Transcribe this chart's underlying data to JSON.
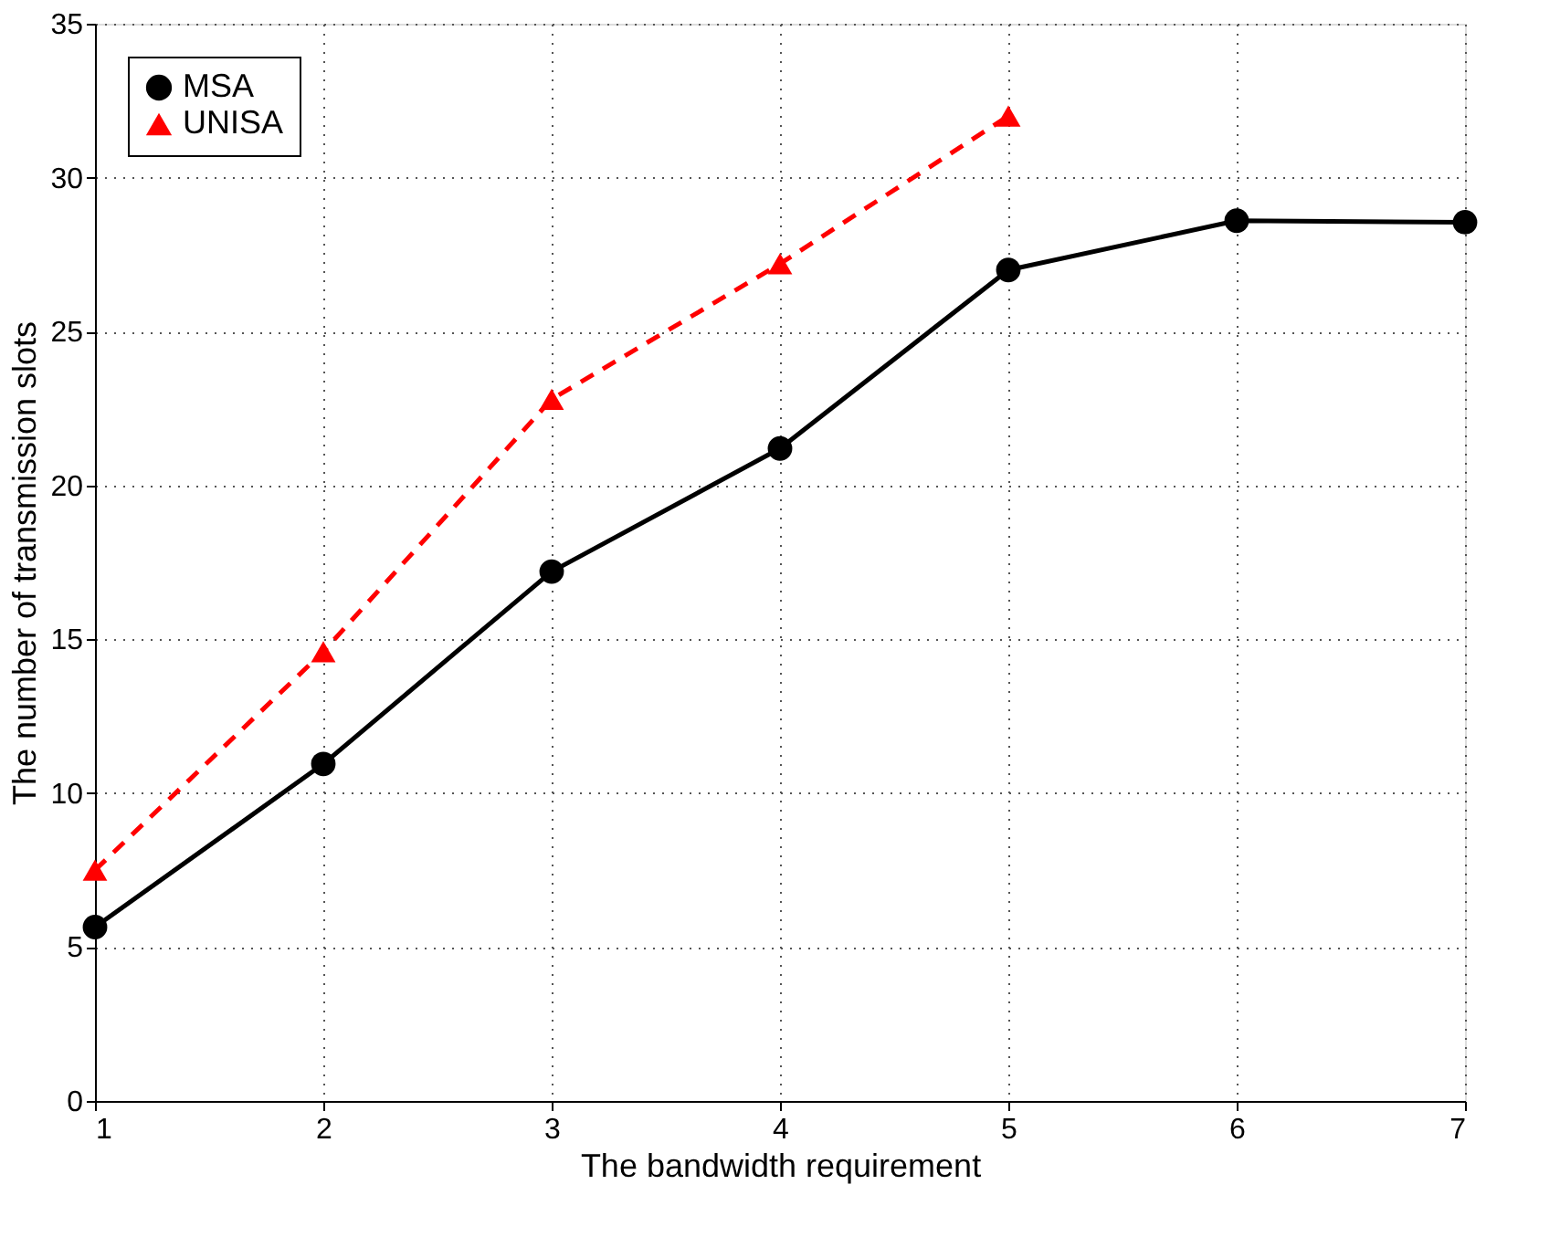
{
  "chart_data": {
    "type": "line",
    "xlabel": "The bandwidth requirement",
    "ylabel": "The number of transmission slots",
    "x": [
      1,
      2,
      3,
      4,
      5,
      6,
      7
    ],
    "series": [
      {
        "name": "MSA",
        "color": "#000000",
        "values": [
          5.65,
          10.95,
          17.2,
          21.2,
          27.0,
          28.6,
          28.55
        ],
        "marker": "circle",
        "line_style": "solid"
      },
      {
        "name": "UNISA",
        "color": "#ff0000",
        "values": [
          7.5,
          14.6,
          22.8,
          27.2,
          32.0,
          null,
          null
        ],
        "marker": "triangle",
        "line_style": "dashed"
      }
    ],
    "xlim": [
      1,
      7
    ],
    "xticks": [
      1,
      2,
      3,
      4,
      5,
      6,
      7
    ],
    "ylim": [
      0,
      35
    ],
    "yticks": [
      0,
      5,
      10,
      15,
      20,
      25,
      30,
      35
    ],
    "grid": true,
    "legend": "top left"
  }
}
